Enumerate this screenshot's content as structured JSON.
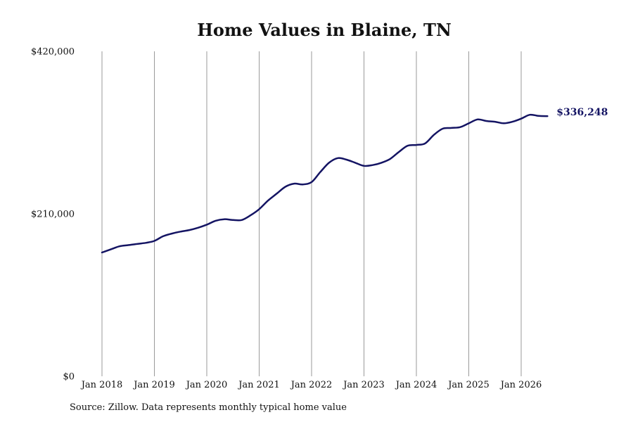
{
  "chart_data": {
    "type": "line",
    "title": "Home Values in Blaine, TN",
    "xlabel": "",
    "ylabel": "",
    "ylim": [
      0,
      420000
    ],
    "y_ticks": [
      0,
      210000,
      420000
    ],
    "y_tick_labels": [
      "$0",
      "$210,000",
      "$420,000"
    ],
    "x_tick_labels": [
      "Jan 2018",
      "Jan 2019",
      "Jan 2020",
      "Jan 2021",
      "Jan 2022",
      "Jan 2023",
      "Jan 2024",
      "Jan 2025",
      "Jan 2026"
    ],
    "grid": "vertical",
    "line_color": "#141463",
    "end_label": "$336,248",
    "series": [
      {
        "x": [
          "2018-01",
          "2018-03",
          "2018-05",
          "2018-07",
          "2018-09",
          "2018-11",
          "2019-01",
          "2019-03",
          "2019-05",
          "2019-07",
          "2019-09",
          "2019-11",
          "2020-01",
          "2020-03",
          "2020-05",
          "2020-07",
          "2020-09",
          "2020-11",
          "2021-01",
          "2021-03",
          "2021-05",
          "2021-07",
          "2021-09",
          "2021-11",
          "2022-01",
          "2022-03",
          "2022-05",
          "2022-07",
          "2022-09",
          "2022-11",
          "2023-01",
          "2023-03",
          "2023-05",
          "2023-07",
          "2023-09",
          "2023-11",
          "2024-01",
          "2024-03",
          "2024-05",
          "2024-07",
          "2024-09",
          "2024-11",
          "2025-01",
          "2025-03",
          "2025-05",
          "2025-07",
          "2025-09",
          "2025-11",
          "2026-01",
          "2026-03",
          "2026-05",
          "2026-07"
        ],
        "values": [
          160000,
          164000,
          168000,
          169500,
          171000,
          172500,
          175000,
          181000,
          184500,
          187000,
          189000,
          192000,
          196000,
          201000,
          203000,
          202000,
          202000,
          208000,
          216000,
          227000,
          236000,
          245000,
          249000,
          248000,
          251000,
          264000,
          276000,
          282000,
          280000,
          276000,
          272000,
          273000,
          276000,
          281000,
          290000,
          298000,
          299000,
          301000,
          312000,
          320000,
          321000,
          322000,
          327000,
          332000,
          330000,
          329000,
          327000,
          329000,
          333000,
          338000,
          336500,
          336248
        ]
      }
    ]
  },
  "source_text": "Source: Zillow. Data represents monthly typical home value"
}
